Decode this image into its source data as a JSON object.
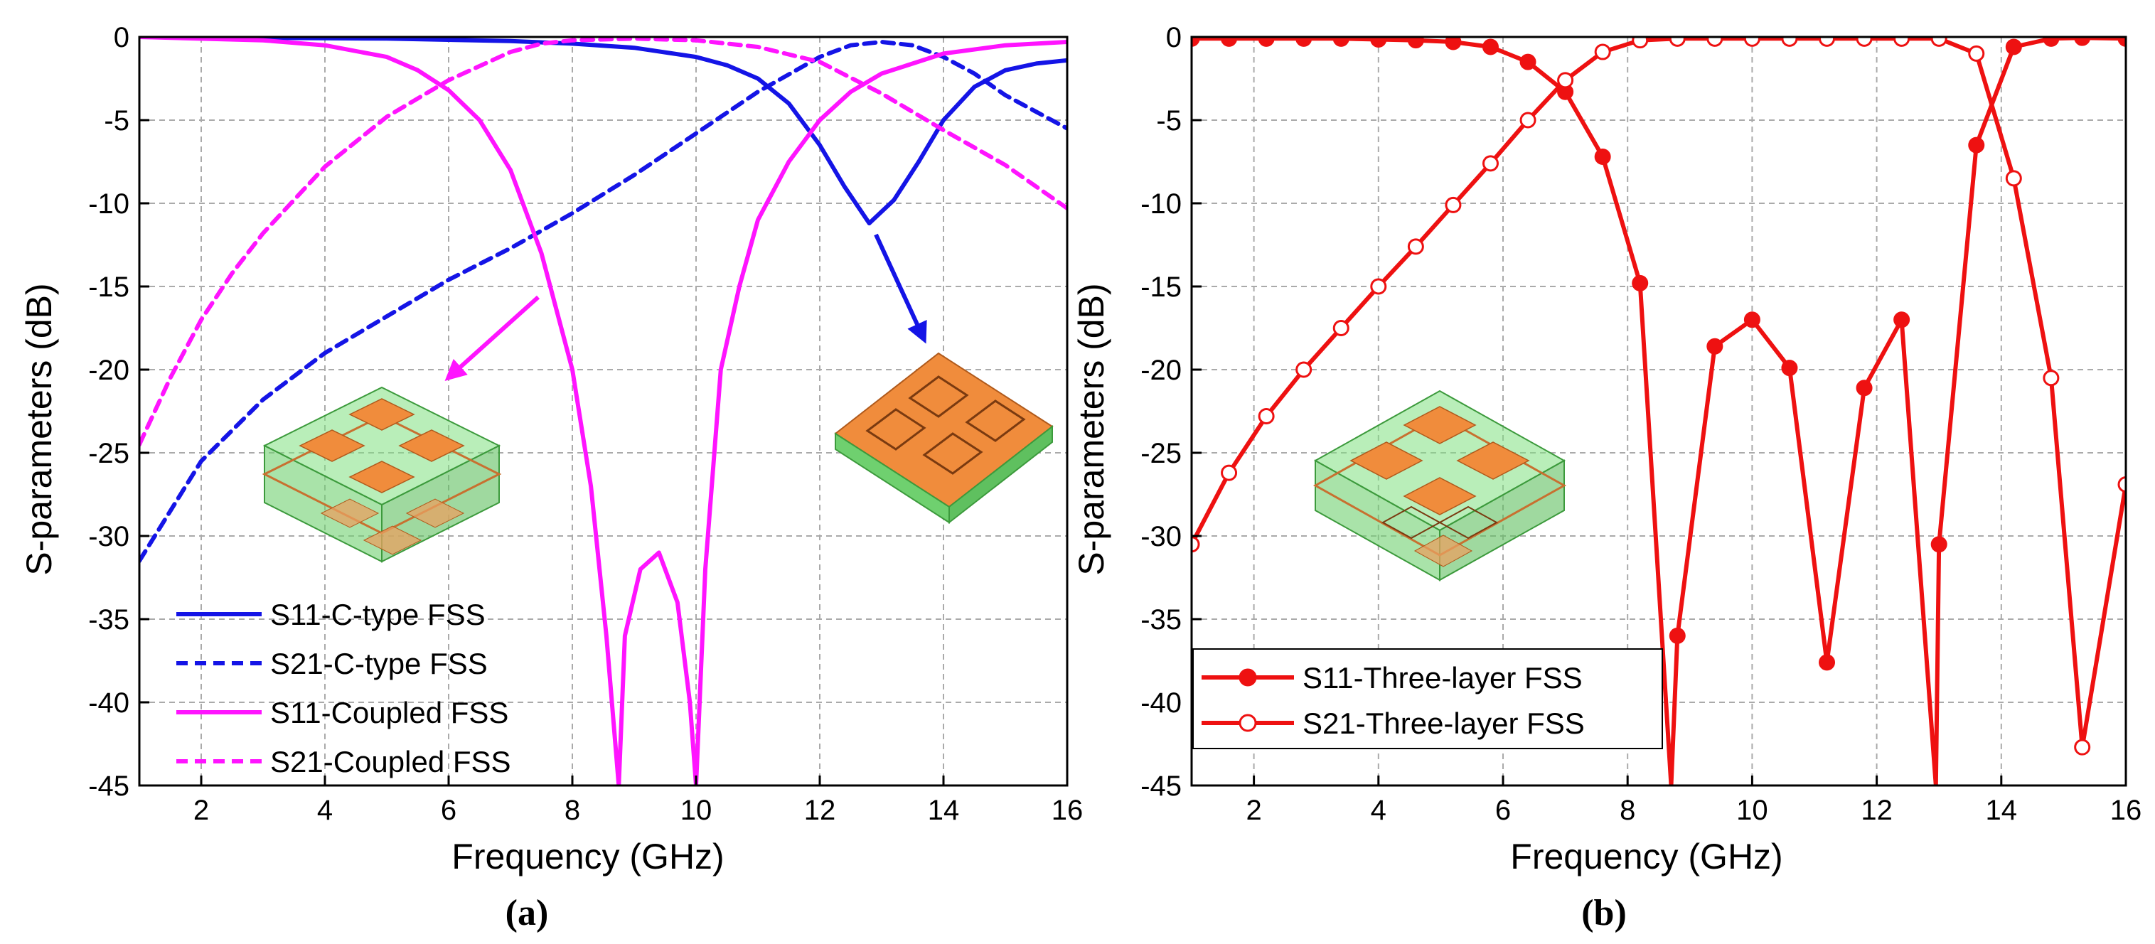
{
  "colors": {
    "blue": "#1414e6",
    "magenta": "#ff14ff",
    "red": "#ee1111",
    "grid": "#aaaaaa",
    "axis": "#000000",
    "fss_green": "#7fe07f",
    "fss_orange": "#f08c3c"
  },
  "chart_data": [
    {
      "id": "a",
      "type": "line",
      "caption": "(a)",
      "xlabel": "Frequency (GHz)",
      "ylabel": "S-parameters (dB)",
      "xlim": [
        1,
        16
      ],
      "ylim": [
        -45,
        0
      ],
      "xticks": [
        2,
        4,
        6,
        8,
        10,
        12,
        14,
        16
      ],
      "xtick_labels": [
        "2",
        "4",
        "6",
        "8",
        "10",
        "12",
        "14",
        "16"
      ],
      "yticks": [
        0,
        -5,
        -10,
        -15,
        -20,
        -25,
        -30,
        -35,
        -40,
        -45
      ],
      "ytick_labels": [
        "0",
        "-5",
        "-10",
        "-15",
        "-20",
        "-25",
        "-30",
        "-35",
        "-40",
        "-45"
      ],
      "grid": true,
      "legend_position": "bottom-left",
      "series": [
        {
          "name": "S11-C-type FSS",
          "color": "#1414e6",
          "dash": "solid",
          "marker": "none",
          "x": [
            1,
            3,
            5,
            7,
            8,
            9,
            10,
            10.5,
            11,
            11.5,
            12,
            12.4,
            12.8,
            13.2,
            13.6,
            14,
            14.5,
            15,
            15.5,
            16
          ],
          "y": [
            0,
            -0.05,
            -0.1,
            -0.25,
            -0.4,
            -0.65,
            -1.2,
            -1.7,
            -2.5,
            -4.0,
            -6.5,
            -9.0,
            -11.2,
            -9.8,
            -7.5,
            -5.0,
            -3.0,
            -2.0,
            -1.6,
            -1.4
          ]
        },
        {
          "name": "S21-C-type FSS",
          "color": "#1414e6",
          "dash": "dashed",
          "marker": "none",
          "x": [
            1,
            1.5,
            2,
            3,
            4,
            5,
            6,
            7,
            8,
            9,
            10,
            11,
            12,
            12.5,
            13,
            13.5,
            14,
            14.5,
            15,
            15.5,
            16
          ],
          "y": [
            -31.5,
            -28.5,
            -25.5,
            -21.8,
            -19.0,
            -16.8,
            -14.6,
            -12.7,
            -10.6,
            -8.3,
            -5.8,
            -3.3,
            -1.2,
            -0.5,
            -0.3,
            -0.5,
            -1.2,
            -2.2,
            -3.5,
            -4.5,
            -5.5
          ]
        },
        {
          "name": "S11-Coupled FSS",
          "color": "#ff14ff",
          "dash": "solid",
          "marker": "none",
          "x": [
            1,
            3,
            4,
            5,
            5.5,
            6,
            6.5,
            7,
            7.5,
            8,
            8.3,
            8.55,
            8.75,
            8.85,
            9.1,
            9.4,
            9.7,
            9.9,
            10.0,
            10.15,
            10.4,
            10.7,
            11,
            11.5,
            12,
            12.5,
            13,
            14,
            15,
            16
          ],
          "y": [
            0,
            -0.2,
            -0.5,
            -1.2,
            -2.0,
            -3.2,
            -5.0,
            -8.0,
            -13.0,
            -20.0,
            -27.0,
            -36.0,
            -45.0,
            -36.0,
            -32.0,
            -31.0,
            -34.0,
            -40.0,
            -45.0,
            -32.0,
            -20.0,
            -15.0,
            -11.0,
            -7.5,
            -5.0,
            -3.3,
            -2.2,
            -1.0,
            -0.5,
            -0.3
          ]
        },
        {
          "name": "S21-Coupled FSS",
          "color": "#ff14ff",
          "dash": "dashed",
          "marker": "none",
          "x": [
            1,
            1.5,
            2,
            2.5,
            3,
            4,
            5,
            6,
            7,
            7.5,
            8,
            9,
            10,
            11,
            12,
            13,
            14,
            15,
            16
          ],
          "y": [
            -24.5,
            -20.5,
            -17.0,
            -14.2,
            -11.8,
            -7.8,
            -4.8,
            -2.6,
            -0.9,
            -0.4,
            -0.2,
            -0.1,
            -0.2,
            -0.6,
            -1.5,
            -3.4,
            -5.6,
            -7.7,
            -10.3
          ]
        }
      ]
    },
    {
      "id": "b",
      "type": "line",
      "caption": "(b)",
      "xlabel": "Frequency (GHz)",
      "ylabel": "S-parameters (dB)",
      "xlim": [
        1,
        16
      ],
      "ylim": [
        -45,
        0
      ],
      "xticks": [
        2,
        4,
        6,
        8,
        10,
        12,
        14,
        16
      ],
      "xtick_labels": [
        "2",
        "4",
        "6",
        "8",
        "10",
        "12",
        "14",
        "16"
      ],
      "yticks": [
        0,
        -5,
        -10,
        -15,
        -20,
        -25,
        -30,
        -35,
        -40,
        -45
      ],
      "ytick_labels": [
        "0",
        "-5",
        "-10",
        "-15",
        "-20",
        "-25",
        "-30",
        "-35",
        "-40",
        "-45"
      ],
      "grid": true,
      "legend_position": "bottom-left",
      "series": [
        {
          "name": "S11-Three-layer FSS",
          "color": "#ee1111",
          "dash": "solid",
          "marker": "filled-circle",
          "x": [
            1,
            1.6,
            2.2,
            2.8,
            3.4,
            4.0,
            4.6,
            5.2,
            5.8,
            6.4,
            7.0,
            7.6,
            8.2,
            8.7,
            8.8,
            9.4,
            10.0,
            10.6,
            11.2,
            11.8,
            12.4,
            12.95,
            13.0,
            13.6,
            14.2,
            14.8,
            15.3,
            16
          ],
          "y": [
            -0.1,
            -0.1,
            -0.1,
            -0.1,
            -0.1,
            -0.15,
            -0.2,
            -0.3,
            -0.6,
            -1.5,
            -3.3,
            -7.2,
            -14.8,
            -45.0,
            -36.0,
            -18.6,
            -17.0,
            -19.9,
            -37.6,
            -21.1,
            -17.0,
            -45.0,
            -30.5,
            -6.5,
            -0.6,
            -0.1,
            -0.05,
            -0.1
          ]
        },
        {
          "name": "S21-Three-layer  FSS",
          "color": "#ee1111",
          "dash": "solid",
          "marker": "open-circle",
          "x": [
            1,
            1.6,
            2.2,
            2.8,
            3.4,
            4.0,
            4.6,
            5.2,
            5.8,
            6.4,
            7.0,
            7.6,
            8.2,
            8.8,
            9.4,
            10.0,
            10.6,
            11.2,
            11.8,
            12.4,
            13.0,
            13.6,
            14.2,
            14.8,
            15.3,
            16
          ],
          "y": [
            -30.5,
            -26.2,
            -22.8,
            -20.0,
            -17.5,
            -15.0,
            -12.6,
            -10.1,
            -7.6,
            -5.0,
            -2.6,
            -0.9,
            -0.2,
            -0.1,
            -0.1,
            -0.1,
            -0.1,
            -0.1,
            -0.1,
            -0.1,
            -0.1,
            -1.0,
            -8.5,
            -20.5,
            -42.7,
            -26.9
          ]
        }
      ]
    }
  ]
}
